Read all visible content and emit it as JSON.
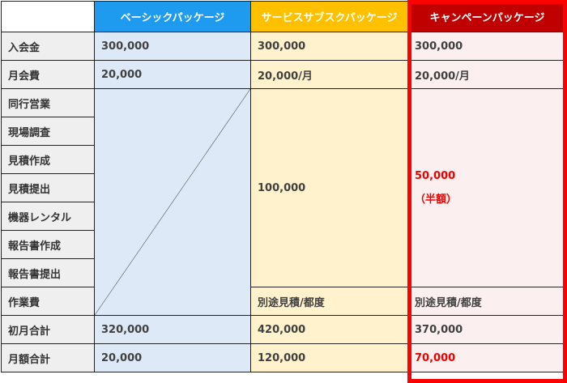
{
  "headers": [
    "ベーシックパッケージ",
    "サービスサブスクパッケージ",
    "キャンペーンパッケージ"
  ],
  "rows": [
    "入会金",
    "月会費",
    "同行営業",
    "現場調査",
    "見積作成",
    "見積提出",
    "機器レンタル",
    "報告書作成",
    "報告書提出",
    "作業費",
    "初月合計",
    "月額合計"
  ],
  "basic": {
    "entry": "300,000",
    "monthly": "20,000",
    "first": "320,000",
    "total": "20,000"
  },
  "subscribe": {
    "entry": "300,000",
    "monthly": "20,000/月",
    "services": "100,000",
    "work": "別途見積/都度",
    "first": "420,000",
    "total": "120,000"
  },
  "campaign": {
    "entry": "300,000",
    "monthly": "20,000/月",
    "services": "50,000",
    "services_note": "（半額）",
    "work": "別途見積/都度",
    "first": "370,000",
    "total": "70,000"
  },
  "colors": {
    "basic": "#1e9bef",
    "subscribe": "#ffc000",
    "campaign": "#c00000",
    "highlight": "#ff0000"
  }
}
